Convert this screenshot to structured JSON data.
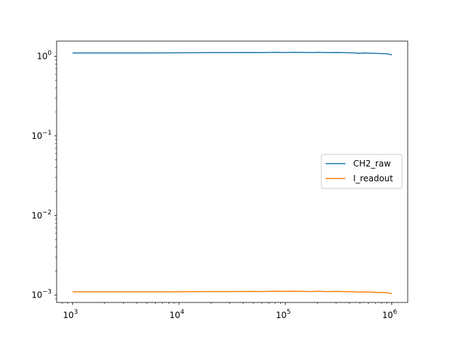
{
  "chart_data": {
    "type": "line",
    "title": "",
    "xlabel": "",
    "ylabel": "",
    "xscale": "log",
    "yscale": "log",
    "xlim": [
      708,
      1410000
    ],
    "ylim": [
      0.00081,
      1.55
    ],
    "grid": false,
    "legend_placement": "center-right",
    "x_ticks": [
      {
        "value": 1000,
        "base": "10",
        "exp": "3"
      },
      {
        "value": 10000,
        "base": "10",
        "exp": "4"
      },
      {
        "value": 100000,
        "base": "10",
        "exp": "5"
      },
      {
        "value": 1000000,
        "base": "10",
        "exp": "6"
      }
    ],
    "y_ticks": [
      {
        "value": 0.001,
        "base": "10",
        "exp": "−3"
      },
      {
        "value": 0.01,
        "base": "10",
        "exp": "−2"
      },
      {
        "value": 0.1,
        "base": "10",
        "exp": "−1"
      },
      {
        "value": 1,
        "base": "10",
        "exp": "0"
      }
    ],
    "x": [
      1000,
      2000,
      5000,
      10000,
      20000,
      30000,
      50000,
      60000,
      70000,
      80000,
      100000,
      120000,
      150000,
      180000,
      200000,
      220000,
      250000,
      300000,
      350000,
      400000,
      450000,
      500000,
      550000,
      600000,
      700000,
      800000,
      900000,
      1000000
    ],
    "series": [
      {
        "name": "CH2_raw",
        "color": "#1f77b4",
        "values": [
          1.1,
          1.1,
          1.1,
          1.105,
          1.11,
          1.11,
          1.115,
          1.11,
          1.115,
          1.12,
          1.115,
          1.12,
          1.115,
          1.11,
          1.12,
          1.115,
          1.11,
          1.115,
          1.11,
          1.105,
          1.1,
          1.09,
          1.1,
          1.095,
          1.085,
          1.08,
          1.075,
          1.04
        ]
      },
      {
        "name": "I_readout",
        "color": "#ff7f0e",
        "values": [
          0.0011,
          0.0011,
          0.0011,
          0.001105,
          0.00111,
          0.00111,
          0.001115,
          0.00111,
          0.001115,
          0.00112,
          0.001115,
          0.00112,
          0.001115,
          0.00111,
          0.00112,
          0.001115,
          0.00111,
          0.001115,
          0.00111,
          0.001105,
          0.0011,
          0.00109,
          0.0011,
          0.001095,
          0.001085,
          0.00108,
          0.001075,
          0.00104
        ]
      }
    ]
  }
}
